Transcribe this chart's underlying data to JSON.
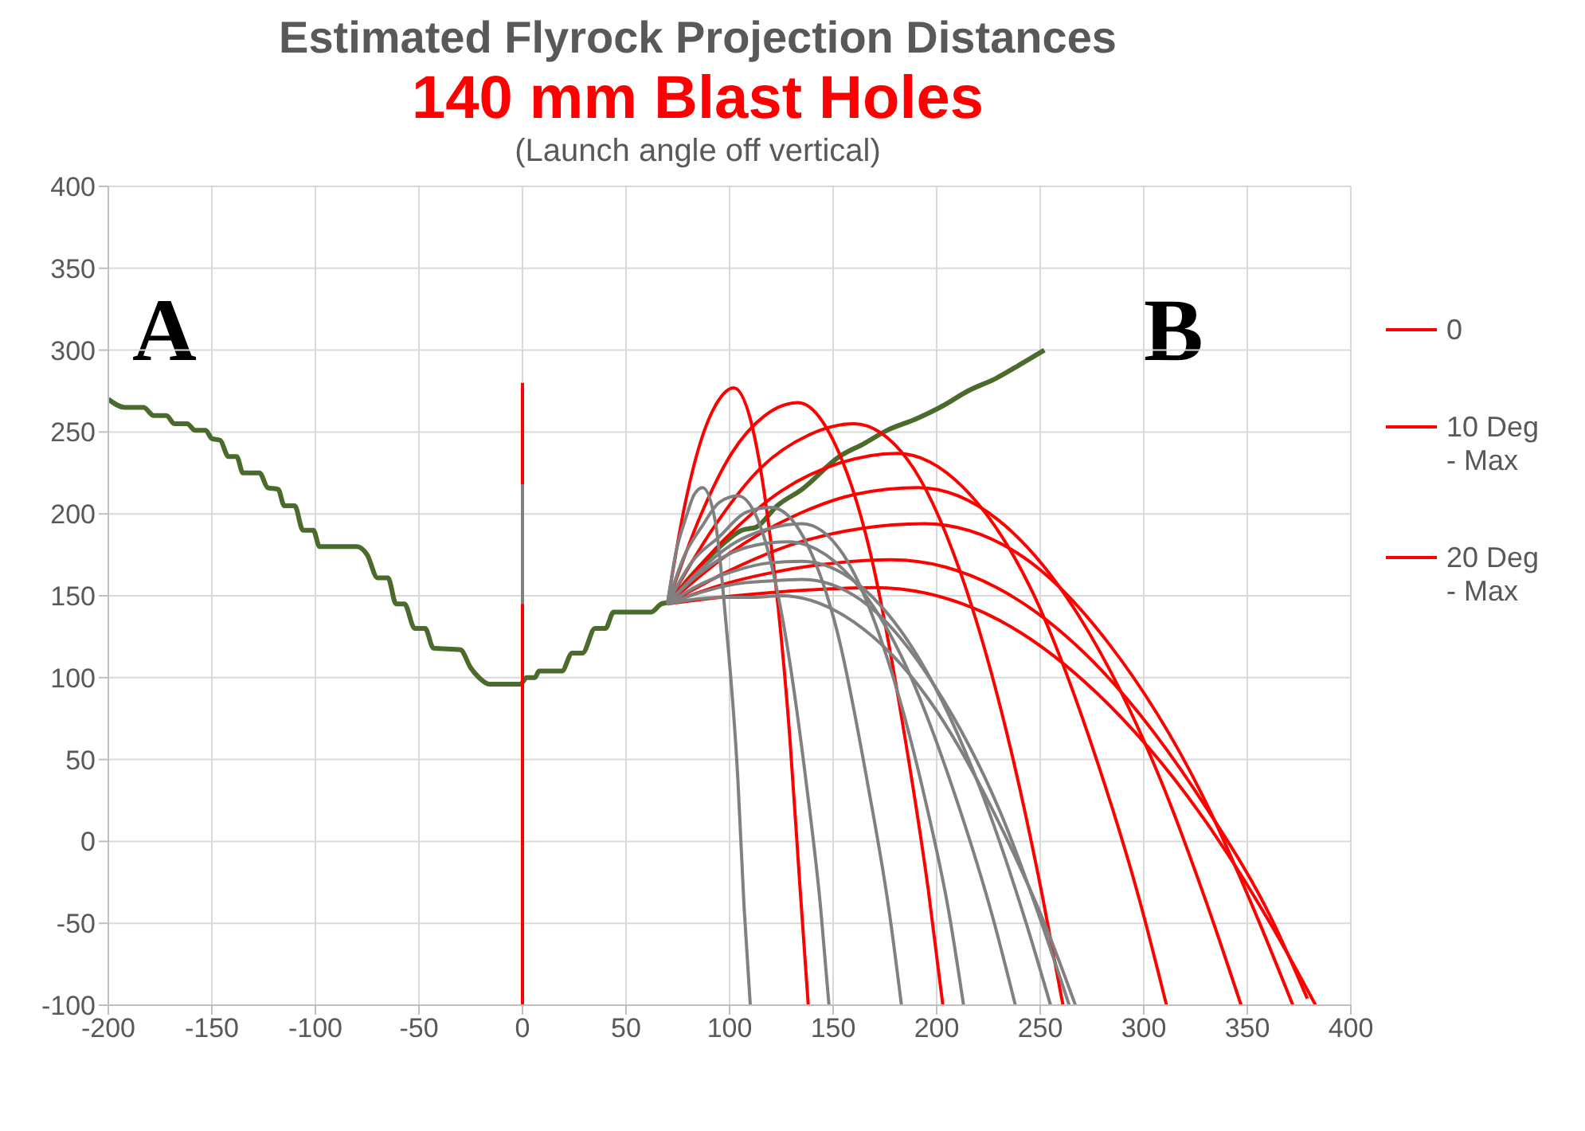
{
  "chart_data": {
    "type": "line",
    "title": "Estimated Flyrock Projection Distances",
    "subtitle": "140 mm Blast Holes",
    "annotations": [
      "(Launch angle off vertical)",
      "A",
      "B"
    ],
    "xlim": [
      -200,
      400
    ],
    "xticks": [
      -200,
      -150,
      -100,
      -50,
      0,
      50,
      100,
      150,
      200,
      250,
      300,
      350,
      400
    ],
    "ylim": [
      -100,
      400
    ],
    "yticks": [
      -100,
      -50,
      0,
      50,
      100,
      150,
      200,
      250,
      300,
      350,
      400
    ],
    "grid": true,
    "legend": "right",
    "marker": "none",
    "line_style": "solid",
    "series": [
      {
        "color": "#4a6b2c",
        "x": [
          -200,
          -192,
          -183,
          -178,
          -172,
          -168,
          -162,
          -158,
          -153,
          -150,
          -146,
          -142,
          -138,
          -135,
          -127,
          -123,
          -118,
          -115,
          -110,
          -106,
          -101,
          -98,
          -80,
          -75,
          -70,
          -65,
          -61,
          -57,
          -52,
          -47,
          -43,
          -30,
          -25,
          -21,
          -16,
          -1,
          2,
          6,
          8,
          19,
          24,
          29,
          35,
          40,
          44,
          62,
          67,
          70,
          80,
          92,
          106,
          113,
          123,
          135,
          153,
          165,
          176,
          190,
          203,
          215,
          229,
          240,
          252
        ],
        "values": [
          270,
          265,
          265,
          260,
          260,
          255,
          255,
          251,
          251,
          246,
          245,
          235,
          235,
          225,
          225,
          216,
          215,
          205,
          205,
          190,
          190,
          180,
          180,
          175,
          161,
          161,
          145,
          145,
          130,
          130,
          118,
          117,
          106,
          100,
          96,
          96,
          100,
          100,
          104,
          104,
          115,
          115,
          130,
          130,
          140,
          140,
          145,
          146,
          160,
          176,
          190,
          192,
          205,
          215,
          235,
          243,
          251,
          258,
          266,
          275,
          283,
          291,
          300
        ]
      },
      {
        "name": "0",
        "color": "#ff0000",
        "x": [
          0,
          0
        ],
        "values": [
          280,
          -100
        ]
      },
      {
        "color": "#808080",
        "x": [
          0,
          0
        ],
        "values": [
          218,
          145
        ]
      },
      {
        "name": "10 Deg - Max",
        "color": "#ff0000",
        "x": [
          70,
          78,
          86,
          94,
          102,
          111,
          120,
          129,
          134,
          138
        ],
        "values": [
          145,
          203,
          244,
          268,
          277,
          253,
          182,
          65,
          -28,
          -100
        ]
      },
      {
        "name": "20 Deg - Max",
        "color": "#ff0000",
        "x": [
          70,
          86,
          101,
          117,
          133,
          150,
          168,
          185,
          196,
          203
        ],
        "values": [
          145,
          199,
          237,
          260,
          268,
          245,
          176,
          61,
          -30,
          -100
        ]
      },
      {
        "color": "#ff0000",
        "x": [
          70,
          93,
          115,
          138,
          160,
          186,
          211,
          236,
          251,
          261
        ],
        "values": [
          145,
          193,
          228,
          248,
          255,
          233,
          166,
          55,
          -33,
          -100
        ]
      },
      {
        "color": "#ff0000",
        "x": [
          70,
          98,
          125,
          153,
          181,
          213,
          246,
          278,
          298,
          311
        ],
        "values": [
          145,
          185,
          214,
          231,
          237,
          216,
          153,
          47,
          -36,
          -100
        ]
      },
      {
        "color": "#ff0000",
        "x": [
          70,
          100,
          130,
          161,
          191,
          230,
          269,
          308,
          331,
          347
        ],
        "values": [
          145,
          176,
          198,
          212,
          216,
          196,
          137,
          38,
          -40,
          -100
        ]
      },
      {
        "color": "#ff0000",
        "x": [
          70,
          101,
          132,
          163,
          194,
          239,
          283,
          328,
          354,
          372
        ],
        "values": [
          145,
          166,
          182,
          191,
          194,
          176,
          121,
          29,
          -44,
          -100
        ]
      },
      {
        "color": "#ff0000",
        "x": [
          70,
          97,
          124,
          151,
          178,
          229,
          280,
          331,
          362,
          379
        ],
        "values": [
          145,
          157,
          165,
          170,
          172,
          155,
          104,
          19,
          -48,
          -96
        ]
      },
      {
        "color": "#ff0000",
        "x": [
          70,
          95,
          120,
          145,
          170,
          224,
          277,
          330,
          362,
          383
        ],
        "values": [
          145,
          149,
          152,
          154,
          155,
          139,
          91,
          12,
          -52,
          -100
        ]
      },
      {
        "color": "#808080",
        "x": [
          70,
          74,
          79,
          83,
          87,
          93,
          98,
          104,
          107,
          110
        ],
        "values": [
          145,
          176,
          198,
          212,
          216,
          196,
          137,
          38,
          -40,
          -100
        ]
      },
      {
        "color": "#808080",
        "x": [
          70,
          84,
          99,
          113,
          128,
          155,
          183,
          210,
          227,
          238
        ],
        "values": [
          145,
          162,
          175,
          181,
          183,
          166,
          113,
          24,
          -46,
          -100
        ]
      },
      {
        "color": "#808080",
        "x": [
          70,
          86,
          102,
          119,
          135,
          165,
          195,
          225,
          243,
          255
        ],
        "values": [
          145,
          157,
          165,
          170,
          171,
          154,
          104,
          19,
          -49,
          -100
        ]
      },
      {
        "color": "#808080",
        "x": [
          70,
          86,
          102,
          119,
          135,
          167,
          199,
          232,
          251,
          264
        ],
        "values": [
          145,
          152,
          157,
          159,
          160,
          144,
          95,
          14,
          -51,
          -100
        ]
      },
      {
        "color": "#808080",
        "x": [
          70,
          84,
          98,
          111,
          125,
          160,
          196,
          231,
          253,
          267
        ],
        "values": [
          145,
          148,
          149,
          149,
          150,
          134,
          87,
          9,
          -53,
          -100
        ]
      },
      {
        "color": "#808080",
        "x": [
          70,
          78,
          87,
          95,
          104,
          115,
          126,
          137,
          144,
          148
        ],
        "values": [
          145,
          174,
          193,
          207,
          211,
          192,
          133,
          36,
          -41,
          -100
        ]
      },
      {
        "color": "#808080",
        "x": [
          70,
          82,
          95,
          108,
          120,
          136,
          152,
          167,
          177,
          183
        ],
        "values": [
          145,
          171,
          186,
          201,
          204,
          185,
          128,
          33,
          -42,
          -100
        ]
      },
      {
        "color": "#808080",
        "x": [
          70,
          86,
          102,
          119,
          135,
          155,
          174,
          194,
          206,
          213
        ],
        "values": [
          145,
          166,
          182,
          191,
          194,
          175,
          120,
          28,
          -44,
          -100
        ]
      }
    ]
  }
}
